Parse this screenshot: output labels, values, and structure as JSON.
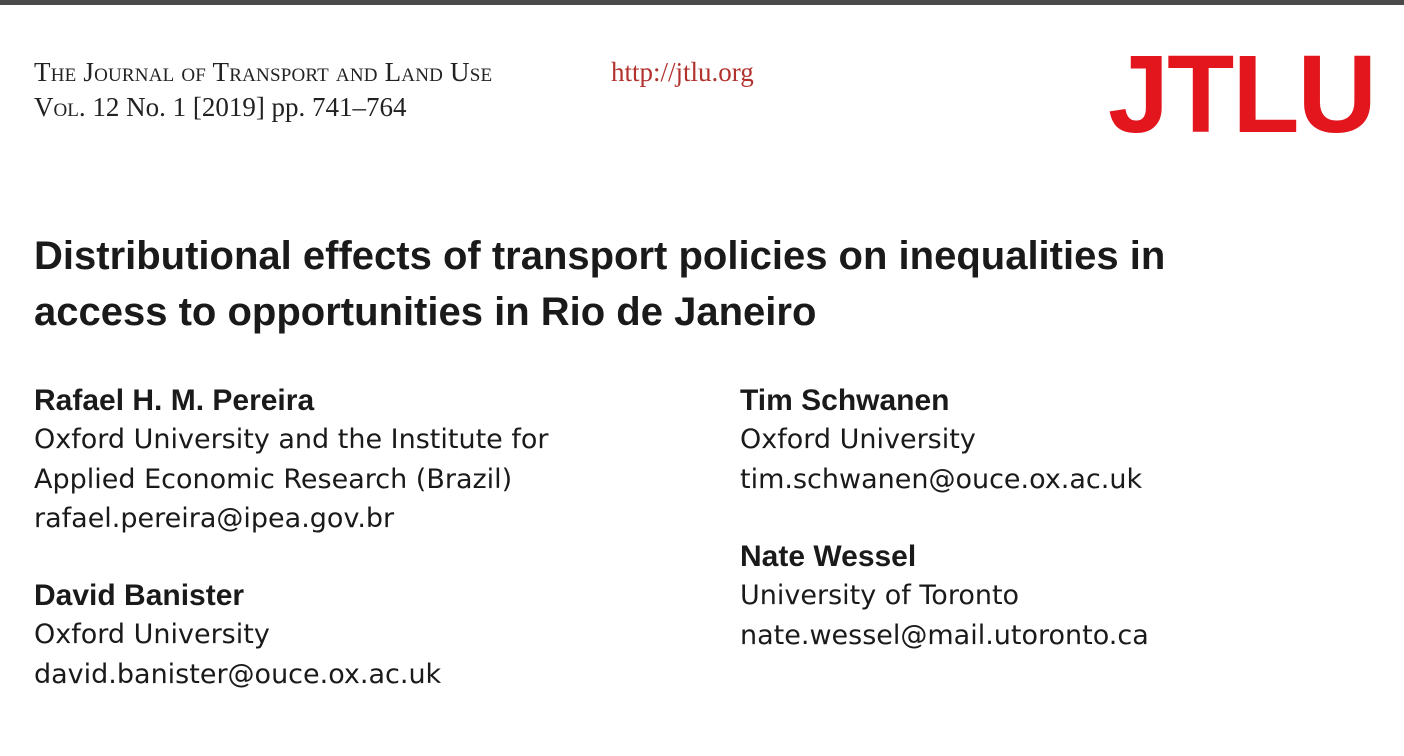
{
  "header": {
    "journal_name": "The Journal of Transport and Land Use",
    "url": "http://jtlu.org",
    "volume_label": "Vol.",
    "volume_rest": "12 No. 1 [2019] pp. 741–764",
    "logo_text": "JTLU"
  },
  "article": {
    "title_line1": "Distributional effects of transport policies on inequalities in",
    "title_line2": "access to opportunities in Rio de Janeiro"
  },
  "authors": [
    {
      "name": "Rafael H. M. Pereira",
      "affiliation_line1": "Oxford University and the Institute for",
      "affiliation_line2": "Applied Economic Research (Brazil)",
      "email": "rafael.pereira@ipea.gov.br"
    },
    {
      "name": "David Banister",
      "affiliation_line1": "Oxford University",
      "email": "david.banister@ouce.ox.ac.uk"
    },
    {
      "name": "Tim Schwanen",
      "affiliation_line1": "Oxford University",
      "email": "tim.schwanen@ouce.ox.ac.uk"
    },
    {
      "name": "Nate Wessel",
      "affiliation_line1": "University of Toronto",
      "email": "nate.wessel@mail.utoronto.ca"
    }
  ],
  "colors": {
    "logo_red": "#e3161d",
    "url_red": "#b2322e",
    "text": "#1a1a1a",
    "top_rule": "#4a4a4a"
  }
}
